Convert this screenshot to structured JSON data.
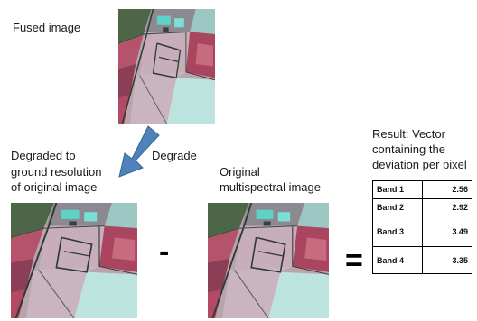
{
  "labels": {
    "fused": "Fused image",
    "degrade": "Degrade",
    "degraded": [
      "Degraded to",
      "ground resolution",
      "of original image"
    ],
    "original": [
      "Original",
      "multispectral image"
    ],
    "result": [
      "Result: Vector",
      "containing the",
      "deviation per pixel"
    ]
  },
  "operators": {
    "minus": "-",
    "equals": "="
  },
  "results_table": [
    {
      "band": "Band 1",
      "value": "2.56"
    },
    {
      "band": "Band 2",
      "value": "2.92"
    },
    {
      "band": "Band 3",
      "value": "3.49"
    },
    {
      "band": "Band 4",
      "value": "3.35"
    }
  ],
  "colors": {
    "arrow": "#4f81bd",
    "arrow_border": "#3a6596"
  }
}
